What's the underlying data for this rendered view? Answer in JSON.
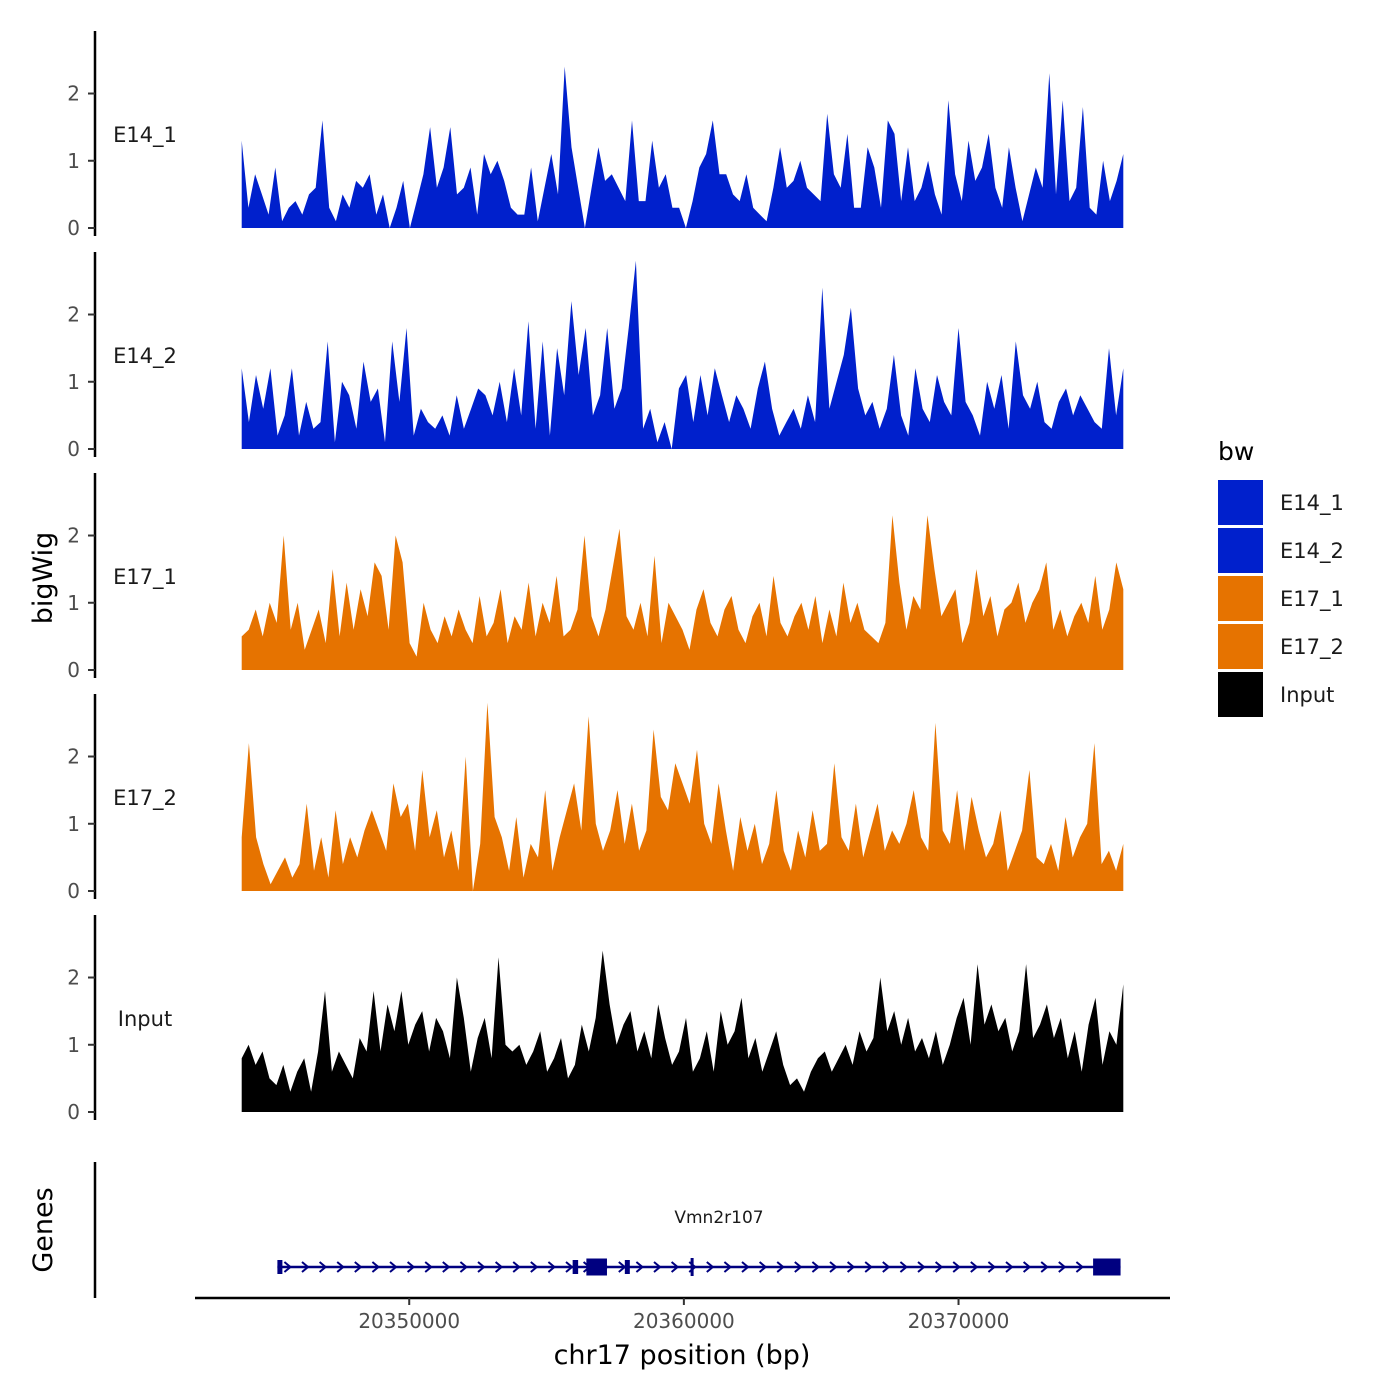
{
  "chart_data": {
    "type": "area",
    "chromosome": "chr17",
    "xlabel": "chr17 position (bp)",
    "ylabel": "bigWig",
    "ylim": [
      0,
      2.9
    ],
    "yticks": [
      0,
      1,
      2
    ],
    "xlim": [
      20342200,
      20377700
    ],
    "xticks": [
      20350000,
      20360000,
      20370000
    ],
    "xtick_labels": [
      "20350000",
      "20360000",
      "20370000"
    ],
    "track_start": 20343900,
    "track_end": 20376000,
    "colors": {
      "E14": "#0020CC",
      "E17": "#E67300",
      "Input": "#000000",
      "gene": "#000080"
    },
    "tracks": [
      {
        "name": "E14_1",
        "color": "#0020CC",
        "values": [
          1.3,
          0.3,
          0.8,
          0.5,
          0.2,
          0.9,
          0.1,
          0.3,
          0.4,
          0.2,
          0.5,
          0.6,
          1.6,
          0.3,
          0.1,
          0.5,
          0.3,
          0.7,
          0.6,
          0.8,
          0.2,
          0.5,
          0,
          0.3,
          0.7,
          0,
          0.4,
          0.8,
          1.5,
          0.6,
          0.9,
          1.5,
          0.5,
          0.6,
          0.9,
          0.2,
          1.1,
          0.8,
          1.0,
          0.7,
          0.3,
          0.2,
          0.2,
          0.9,
          0.1,
          0.6,
          1.1,
          0.5,
          2.4,
          1.2,
          0.6,
          0,
          0.6,
          1.2,
          0.7,
          0.8,
          0.6,
          0.4,
          1.6,
          0.4,
          0.4,
          1.3,
          0.6,
          0.8,
          0.3,
          0.3,
          0,
          0.4,
          0.9,
          1.1,
          1.6,
          0.8,
          0.8,
          0.5,
          0.4,
          0.8,
          0.3,
          0.2,
          0.1,
          0.6,
          1.2,
          0.6,
          0.7,
          1.0,
          0.6,
          0.5,
          0.4,
          1.7,
          0.8,
          0.6,
          1.4,
          0.3,
          0.3,
          1.2,
          0.9,
          0.3,
          1.6,
          1.4,
          0.4,
          1.2,
          0.4,
          0.6,
          1.0,
          0.5,
          0.2,
          1.9,
          0.8,
          0.4,
          1.3,
          0.7,
          0.9,
          1.4,
          0.6,
          0.3,
          1.2,
          0.6,
          0.1,
          0.5,
          0.9,
          0.6,
          2.3,
          0.5,
          1.9,
          0.4,
          0.6,
          1.8,
          0.3,
          0.2,
          1.0,
          0.4,
          0.7,
          1.1
        ]
      },
      {
        "name": "E14_2",
        "color": "#0020CC",
        "values": [
          1.2,
          0.4,
          1.1,
          0.6,
          1.2,
          0.2,
          0.5,
          1.2,
          0.2,
          0.7,
          0.3,
          0.4,
          1.6,
          0.1,
          1.0,
          0.8,
          0.3,
          1.3,
          0.7,
          0.9,
          0.1,
          1.6,
          0.7,
          1.8,
          0.2,
          0.6,
          0.4,
          0.3,
          0.5,
          0.2,
          0.8,
          0.3,
          0.6,
          0.9,
          0.8,
          0.5,
          1.0,
          0.4,
          1.2,
          0.5,
          1.9,
          0.3,
          1.6,
          0.2,
          1.5,
          0.8,
          2.2,
          1.1,
          1.8,
          0.5,
          0.8,
          1.8,
          0.6,
          0.9,
          1.8,
          2.8,
          0.3,
          0.6,
          0.1,
          0.4,
          0,
          0.9,
          1.1,
          0.4,
          1.1,
          0.5,
          1.2,
          0.8,
          0.4,
          0.8,
          0.6,
          0.3,
          0.9,
          1.3,
          0.6,
          0.2,
          0.4,
          0.6,
          0.3,
          0.8,
          0.4,
          2.4,
          0.6,
          1.0,
          1.4,
          2.1,
          0.9,
          0.5,
          0.7,
          0.3,
          0.6,
          1.4,
          0.5,
          0.2,
          1.2,
          0.6,
          0.4,
          1.1,
          0.7,
          0.5,
          1.8,
          0.7,
          0.5,
          0.2,
          1.0,
          0.6,
          1.1,
          0.3,
          1.6,
          0.8,
          0.6,
          1.0,
          0.4,
          0.3,
          0.7,
          0.9,
          0.5,
          0.8,
          0.6,
          0.4,
          0.3,
          1.5,
          0.5,
          1.2
        ]
      },
      {
        "name": "E17_1",
        "color": "#E67300",
        "values": [
          0.5,
          0.6,
          0.9,
          0.5,
          1.0,
          0.7,
          2.0,
          0.6,
          1.0,
          0.3,
          0.6,
          0.9,
          0.4,
          1.5,
          0.5,
          1.3,
          0.6,
          1.2,
          0.8,
          1.6,
          1.4,
          0.6,
          2.0,
          1.6,
          0.4,
          0.2,
          1.0,
          0.6,
          0.4,
          0.8,
          0.5,
          0.9,
          0.6,
          0.4,
          1.1,
          0.5,
          0.7,
          1.2,
          0.4,
          0.8,
          0.6,
          1.3,
          0.5,
          1.0,
          0.7,
          1.4,
          0.5,
          0.6,
          0.9,
          2.0,
          0.8,
          0.5,
          0.9,
          1.5,
          2.1,
          0.8,
          0.6,
          1.0,
          0.5,
          1.7,
          0.4,
          1.0,
          0.8,
          0.6,
          0.3,
          0.9,
          1.2,
          0.7,
          0.5,
          0.9,
          1.1,
          0.6,
          0.4,
          0.8,
          1.0,
          0.5,
          1.4,
          0.7,
          0.5,
          0.8,
          1.0,
          0.6,
          1.1,
          0.4,
          0.9,
          0.5,
          1.3,
          0.7,
          1.0,
          0.6,
          0.5,
          0.4,
          0.7,
          2.3,
          1.3,
          0.6,
          1.1,
          0.9,
          2.3,
          1.5,
          0.8,
          1.0,
          1.2,
          0.4,
          0.7,
          1.5,
          0.8,
          1.1,
          0.5,
          0.9,
          1.0,
          1.3,
          0.7,
          1.0,
          1.2,
          1.6,
          0.6,
          0.9,
          0.5,
          0.8,
          1.0,
          0.7,
          1.4,
          0.6,
          0.9,
          1.6,
          1.2
        ]
      },
      {
        "name": "E17_2",
        "color": "#E67300",
        "values": [
          0.8,
          2.2,
          0.8,
          0.4,
          0.1,
          0.3,
          0.5,
          0.2,
          0.4,
          1.3,
          0.3,
          0.8,
          0.2,
          1.2,
          0.4,
          0.8,
          0.5,
          0.9,
          1.2,
          0.9,
          0.6,
          1.6,
          1.1,
          1.3,
          0.6,
          1.8,
          0.8,
          1.2,
          0.5,
          0.9,
          0.3,
          2.0,
          0,
          0.7,
          2.8,
          1.1,
          0.8,
          0.3,
          1.1,
          0.2,
          0.7,
          0.5,
          1.5,
          0.3,
          0.8,
          1.2,
          1.6,
          0.9,
          2.6,
          1.0,
          0.6,
          0.9,
          1.5,
          0.7,
          1.3,
          0.6,
          0.9,
          2.4,
          1.4,
          1.2,
          1.9,
          1.6,
          1.3,
          2.1,
          1.0,
          0.7,
          1.6,
          0.9,
          0.3,
          1.1,
          0.6,
          1.0,
          0.4,
          0.7,
          1.5,
          0.6,
          0.3,
          0.9,
          0.5,
          1.2,
          0.6,
          0.7,
          1.9,
          0.8,
          0.6,
          1.3,
          0.5,
          0.9,
          1.3,
          0.6,
          0.9,
          0.7,
          1.0,
          1.5,
          0.8,
          0.6,
          2.5,
          0.9,
          0.7,
          1.5,
          0.6,
          1.4,
          0.9,
          0.5,
          0.7,
          1.2,
          0.3,
          0.6,
          0.9,
          1.8,
          0.5,
          0.4,
          0.7,
          0.3,
          1.1,
          0.5,
          0.8,
          1.0,
          2.2,
          0.4,
          0.6,
          0.3,
          0.7
        ]
      },
      {
        "name": "Input",
        "color": "#000000",
        "values": [
          0.8,
          1.0,
          0.7,
          0.9,
          0.5,
          0.4,
          0.7,
          0.3,
          0.6,
          0.8,
          0.3,
          0.9,
          1.8,
          0.6,
          0.9,
          0.7,
          0.5,
          1.1,
          0.9,
          1.8,
          0.9,
          1.6,
          1.2,
          1.8,
          1.0,
          1.3,
          1.5,
          0.9,
          1.4,
          1.2,
          0.8,
          2.0,
          1.4,
          0.6,
          1.1,
          1.4,
          0.8,
          2.3,
          1.0,
          0.9,
          1.0,
          0.7,
          0.9,
          1.2,
          0.6,
          0.8,
          1.1,
          0.5,
          0.7,
          1.3,
          0.9,
          1.4,
          2.4,
          1.6,
          1.0,
          1.3,
          1.5,
          0.9,
          1.2,
          0.8,
          1.6,
          1.1,
          0.7,
          0.9,
          1.4,
          0.6,
          0.8,
          1.2,
          0.6,
          1.5,
          1.0,
          1.2,
          1.7,
          0.8,
          1.1,
          0.6,
          0.9,
          1.2,
          0.7,
          0.4,
          0.5,
          0.3,
          0.6,
          0.8,
          0.9,
          0.6,
          0.8,
          1.0,
          0.7,
          1.2,
          0.9,
          1.1,
          2.0,
          1.2,
          1.5,
          1.0,
          1.4,
          0.9,
          1.1,
          0.8,
          1.2,
          0.7,
          1.0,
          1.4,
          1.7,
          1.0,
          2.2,
          1.3,
          1.6,
          1.2,
          1.4,
          0.9,
          1.2,
          2.2,
          1.1,
          1.3,
          1.6,
          1.1,
          1.4,
          0.8,
          1.2,
          0.6,
          1.3,
          1.7,
          0.7,
          1.2,
          1.0,
          1.9
        ]
      }
    ],
    "legend": {
      "title": "bw",
      "position": "right",
      "entries": [
        {
          "label": "E14_1",
          "color": "#0020CC"
        },
        {
          "label": "E14_2",
          "color": "#0020CC"
        },
        {
          "label": "E17_1",
          "color": "#E67300"
        },
        {
          "label": "E17_2",
          "color": "#E67300"
        },
        {
          "label": "Input",
          "color": "#000000"
        }
      ]
    },
    "genes_track": {
      "title": "Genes",
      "genes": [
        {
          "name": "Vmn2r107",
          "start": 20345200,
          "end": 20375900,
          "strand": "+",
          "exons": [
            {
              "start": 20345200,
              "end": 20345300,
              "kind": "thin"
            },
            {
              "start": 20355950,
              "end": 20356150,
              "kind": "thin"
            },
            {
              "start": 20356450,
              "end": 20357200,
              "kind": "thick"
            },
            {
              "start": 20357850,
              "end": 20357950,
              "kind": "thin"
            },
            {
              "start": 20360300,
              "end": 20360350,
              "kind": "line"
            },
            {
              "start": 20374900,
              "end": 20375900,
              "kind": "thick"
            }
          ]
        }
      ]
    }
  }
}
